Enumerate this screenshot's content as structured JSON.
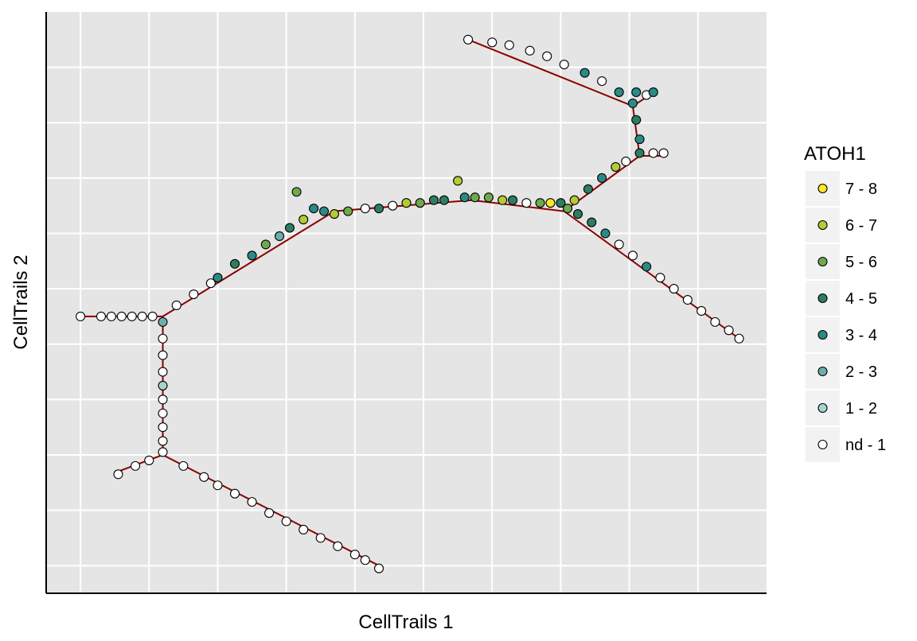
{
  "chart_data": {
    "type": "scatter",
    "title": "",
    "xlabel": "CellTrails 1",
    "ylabel": "CellTrails 2",
    "xlim": [
      0,
      21
    ],
    "ylim": [
      0,
      10.5
    ],
    "xticks": [
      1,
      3,
      5,
      7,
      9,
      11,
      13,
      15,
      17,
      19
    ],
    "yticks": [
      0.5,
      1.5,
      2.5,
      3.5,
      4.5,
      5.5,
      6.5,
      7.5,
      8.5,
      9.5
    ],
    "grid": true,
    "legend_position": "right",
    "legend": {
      "title": "ATOH1",
      "entries": [
        {
          "label": "7 - 8",
          "color": "#FDE725"
        },
        {
          "label": "6 - 7",
          "color": "#B5CB35"
        },
        {
          "label": "5 - 6",
          "color": "#6EA94E"
        },
        {
          "label": "4 - 5",
          "color": "#2E7D62"
        },
        {
          "label": "3 - 4",
          "color": "#2C8A86"
        },
        {
          "label": "2 - 3",
          "color": "#6BAFAC"
        },
        {
          "label": "1 - 2",
          "color": "#A9D2CC"
        },
        {
          "label": "nd - 1",
          "color": "#FFFFFF"
        }
      ]
    },
    "trajectory_color": "#8B0000",
    "trajectory_segments": [
      {
        "from": [
          1.0,
          5.0
        ],
        "to": [
          3.4,
          5.0
        ]
      },
      {
        "from": [
          3.4,
          5.0
        ],
        "to": [
          3.4,
          2.5
        ]
      },
      {
        "from": [
          3.4,
          2.5
        ],
        "to": [
          2.1,
          2.2
        ]
      },
      {
        "from": [
          3.4,
          2.5
        ],
        "to": [
          9.7,
          0.5
        ]
      },
      {
        "from": [
          3.4,
          5.0
        ],
        "to": [
          8.4,
          6.9
        ]
      },
      {
        "from": [
          8.4,
          6.9
        ],
        "to": [
          12.4,
          7.1
        ]
      },
      {
        "from": [
          12.4,
          7.1
        ],
        "to": [
          15.1,
          6.9
        ]
      },
      {
        "from": [
          15.1,
          6.9
        ],
        "to": [
          20.2,
          4.6
        ]
      },
      {
        "from": [
          15.1,
          6.9
        ],
        "to": [
          17.3,
          7.9
        ]
      },
      {
        "from": [
          17.3,
          7.9
        ],
        "to": [
          18.0,
          7.9
        ]
      },
      {
        "from": [
          17.3,
          7.9
        ],
        "to": [
          17.1,
          8.8
        ]
      },
      {
        "from": [
          17.1,
          8.8
        ],
        "to": [
          12.3,
          10.0
        ]
      },
      {
        "from": [
          17.1,
          8.8
        ],
        "to": [
          17.6,
          9.0
        ]
      }
    ],
    "points": [
      {
        "x": 1.0,
        "y": 5.0,
        "level": "nd - 1"
      },
      {
        "x": 1.6,
        "y": 5.0,
        "level": "nd - 1"
      },
      {
        "x": 1.9,
        "y": 5.0,
        "level": "nd - 1"
      },
      {
        "x": 2.2,
        "y": 5.0,
        "level": "nd - 1"
      },
      {
        "x": 2.5,
        "y": 5.0,
        "level": "nd - 1"
      },
      {
        "x": 2.8,
        "y": 5.0,
        "level": "nd - 1"
      },
      {
        "x": 3.1,
        "y": 5.0,
        "level": "nd - 1"
      },
      {
        "x": 3.4,
        "y": 4.9,
        "level": "2 - 3"
      },
      {
        "x": 3.4,
        "y": 4.6,
        "level": "nd - 1"
      },
      {
        "x": 3.4,
        "y": 4.3,
        "level": "nd - 1"
      },
      {
        "x": 3.4,
        "y": 4.0,
        "level": "nd - 1"
      },
      {
        "x": 3.4,
        "y": 3.75,
        "level": "1 - 2"
      },
      {
        "x": 3.4,
        "y": 3.5,
        "level": "nd - 1"
      },
      {
        "x": 3.4,
        "y": 3.25,
        "level": "nd - 1"
      },
      {
        "x": 3.4,
        "y": 3.0,
        "level": "nd - 1"
      },
      {
        "x": 3.4,
        "y": 2.75,
        "level": "nd - 1"
      },
      {
        "x": 3.4,
        "y": 2.55,
        "level": "nd - 1"
      },
      {
        "x": 3.0,
        "y": 2.4,
        "level": "nd - 1"
      },
      {
        "x": 2.6,
        "y": 2.3,
        "level": "nd - 1"
      },
      {
        "x": 2.1,
        "y": 2.15,
        "level": "nd - 1"
      },
      {
        "x": 4.0,
        "y": 2.3,
        "level": "nd - 1"
      },
      {
        "x": 4.6,
        "y": 2.1,
        "level": "nd - 1"
      },
      {
        "x": 5.0,
        "y": 1.95,
        "level": "nd - 1"
      },
      {
        "x": 5.5,
        "y": 1.8,
        "level": "nd - 1"
      },
      {
        "x": 6.0,
        "y": 1.65,
        "level": "nd - 1"
      },
      {
        "x": 6.5,
        "y": 1.45,
        "level": "nd - 1"
      },
      {
        "x": 7.0,
        "y": 1.3,
        "level": "nd - 1"
      },
      {
        "x": 7.5,
        "y": 1.15,
        "level": "nd - 1"
      },
      {
        "x": 8.0,
        "y": 1.0,
        "level": "nd - 1"
      },
      {
        "x": 8.5,
        "y": 0.85,
        "level": "nd - 1"
      },
      {
        "x": 9.0,
        "y": 0.7,
        "level": "nd - 1"
      },
      {
        "x": 9.3,
        "y": 0.6,
        "level": "nd - 1"
      },
      {
        "x": 9.7,
        "y": 0.45,
        "level": "nd - 1"
      },
      {
        "x": 3.8,
        "y": 5.2,
        "level": "nd - 1"
      },
      {
        "x": 4.3,
        "y": 5.4,
        "level": "nd - 1"
      },
      {
        "x": 4.8,
        "y": 5.6,
        "level": "nd - 1"
      },
      {
        "x": 5.0,
        "y": 5.7,
        "level": "3 - 4"
      },
      {
        "x": 5.5,
        "y": 5.95,
        "level": "4 - 5"
      },
      {
        "x": 6.0,
        "y": 6.1,
        "level": "3 - 4"
      },
      {
        "x": 6.4,
        "y": 6.3,
        "level": "5 - 6"
      },
      {
        "x": 6.8,
        "y": 6.45,
        "level": "2 - 3"
      },
      {
        "x": 7.1,
        "y": 6.6,
        "level": "4 - 5"
      },
      {
        "x": 7.5,
        "y": 6.75,
        "level": "6 - 7"
      },
      {
        "x": 7.8,
        "y": 6.95,
        "level": "3 - 4"
      },
      {
        "x": 7.3,
        "y": 7.25,
        "level": "5 - 6"
      },
      {
        "x": 8.1,
        "y": 6.9,
        "level": "3 - 4"
      },
      {
        "x": 8.4,
        "y": 6.85,
        "level": "6 - 7"
      },
      {
        "x": 8.8,
        "y": 6.9,
        "level": "5 - 6"
      },
      {
        "x": 9.3,
        "y": 6.95,
        "level": "nd - 1"
      },
      {
        "x": 9.7,
        "y": 6.95,
        "level": "4 - 5"
      },
      {
        "x": 10.1,
        "y": 7.0,
        "level": "nd - 1"
      },
      {
        "x": 10.5,
        "y": 7.05,
        "level": "6 - 7"
      },
      {
        "x": 10.9,
        "y": 7.05,
        "level": "5 - 6"
      },
      {
        "x": 11.3,
        "y": 7.1,
        "level": "4 - 5"
      },
      {
        "x": 11.6,
        "y": 7.1,
        "level": "4 - 5"
      },
      {
        "x": 12.0,
        "y": 7.45,
        "level": "6 - 7"
      },
      {
        "x": 12.2,
        "y": 7.15,
        "level": "3 - 4"
      },
      {
        "x": 12.5,
        "y": 7.15,
        "level": "5 - 6"
      },
      {
        "x": 12.9,
        "y": 7.15,
        "level": "5 - 6"
      },
      {
        "x": 13.3,
        "y": 7.1,
        "level": "6 - 7"
      },
      {
        "x": 13.6,
        "y": 7.1,
        "level": "4 - 5"
      },
      {
        "x": 14.0,
        "y": 7.05,
        "level": "nd - 1"
      },
      {
        "x": 14.4,
        "y": 7.05,
        "level": "5 - 6"
      },
      {
        "x": 14.7,
        "y": 7.05,
        "level": "7 - 8"
      },
      {
        "x": 15.0,
        "y": 7.05,
        "level": "4 - 5"
      },
      {
        "x": 15.2,
        "y": 6.95,
        "level": "5 - 6"
      },
      {
        "x": 15.5,
        "y": 6.85,
        "level": "4 - 5"
      },
      {
        "x": 15.9,
        "y": 6.7,
        "level": "4 - 5"
      },
      {
        "x": 16.3,
        "y": 6.5,
        "level": "3 - 4"
      },
      {
        "x": 16.7,
        "y": 6.3,
        "level": "nd - 1"
      },
      {
        "x": 17.1,
        "y": 6.1,
        "level": "nd - 1"
      },
      {
        "x": 17.5,
        "y": 5.9,
        "level": "3 - 4"
      },
      {
        "x": 17.9,
        "y": 5.7,
        "level": "nd - 1"
      },
      {
        "x": 18.3,
        "y": 5.5,
        "level": "nd - 1"
      },
      {
        "x": 18.7,
        "y": 5.3,
        "level": "nd - 1"
      },
      {
        "x": 19.1,
        "y": 5.1,
        "level": "nd - 1"
      },
      {
        "x": 19.5,
        "y": 4.9,
        "level": "nd - 1"
      },
      {
        "x": 19.9,
        "y": 4.75,
        "level": "nd - 1"
      },
      {
        "x": 20.2,
        "y": 4.6,
        "level": "nd - 1"
      },
      {
        "x": 15.4,
        "y": 7.1,
        "level": "6 - 7"
      },
      {
        "x": 15.8,
        "y": 7.3,
        "level": "4 - 5"
      },
      {
        "x": 16.2,
        "y": 7.5,
        "level": "3 - 4"
      },
      {
        "x": 16.6,
        "y": 7.7,
        "level": "6 - 7"
      },
      {
        "x": 16.9,
        "y": 7.8,
        "level": "nd - 1"
      },
      {
        "x": 17.3,
        "y": 7.95,
        "level": "4 - 5"
      },
      {
        "x": 17.7,
        "y": 7.95,
        "level": "nd - 1"
      },
      {
        "x": 18.0,
        "y": 7.95,
        "level": "nd - 1"
      },
      {
        "x": 17.3,
        "y": 8.2,
        "level": "3 - 4"
      },
      {
        "x": 17.2,
        "y": 8.55,
        "level": "4 - 5"
      },
      {
        "x": 17.1,
        "y": 8.85,
        "level": "3 - 4"
      },
      {
        "x": 17.2,
        "y": 9.05,
        "level": "3 - 4"
      },
      {
        "x": 17.5,
        "y": 9.0,
        "level": "nd - 1"
      },
      {
        "x": 17.7,
        "y": 9.05,
        "level": "3 - 4"
      },
      {
        "x": 16.7,
        "y": 9.05,
        "level": "3 - 4"
      },
      {
        "x": 16.2,
        "y": 9.25,
        "level": "nd - 1"
      },
      {
        "x": 15.7,
        "y": 9.4,
        "level": "3 - 4"
      },
      {
        "x": 15.1,
        "y": 9.55,
        "level": "nd - 1"
      },
      {
        "x": 14.6,
        "y": 9.7,
        "level": "nd - 1"
      },
      {
        "x": 14.1,
        "y": 9.8,
        "level": "nd - 1"
      },
      {
        "x": 13.5,
        "y": 9.9,
        "level": "nd - 1"
      },
      {
        "x": 13.0,
        "y": 9.95,
        "level": "nd - 1"
      },
      {
        "x": 12.3,
        "y": 10.0,
        "level": "nd - 1"
      }
    ]
  }
}
